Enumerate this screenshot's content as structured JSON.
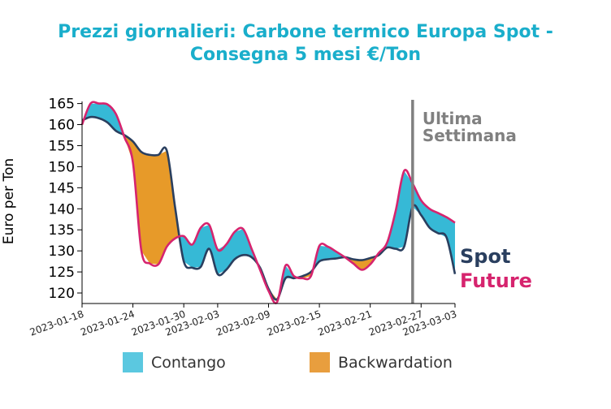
{
  "chart_data": {
    "type": "line",
    "title_line1": "Prezzi giornalieri: Carbone termico Europa Spot -",
    "title_line2": "Consegna 5 mesi €/Ton",
    "ylabel": "Euro per Ton",
    "xlabel": "",
    "ylim": [
      117.5,
      165.5
    ],
    "yticks": [
      120,
      125,
      130,
      135,
      140,
      145,
      150,
      155,
      160,
      165
    ],
    "xlim": [
      "2023-01-18",
      "2023-03-03"
    ],
    "xticks": [
      "2023-01-18",
      "2023-01-24",
      "2023-01-30",
      "2023-02-03",
      "2023-02-09",
      "2023-02-15",
      "2023-02-21",
      "2023-02-27",
      "2023-03-03"
    ],
    "dates": [
      "2023-01-18",
      "2023-01-19",
      "2023-01-20",
      "2023-01-21",
      "2023-01-22",
      "2023-01-23",
      "2023-01-24",
      "2023-01-25",
      "2023-01-26",
      "2023-01-27",
      "2023-01-28",
      "2023-01-29",
      "2023-01-30",
      "2023-01-31",
      "2023-02-01",
      "2023-02-02",
      "2023-02-03",
      "2023-02-04",
      "2023-02-05",
      "2023-02-06",
      "2023-02-07",
      "2023-02-08",
      "2023-02-09",
      "2023-02-10",
      "2023-02-11",
      "2023-02-12",
      "2023-02-13",
      "2023-02-14",
      "2023-02-15",
      "2023-02-16",
      "2023-02-17",
      "2023-02-18",
      "2023-02-19",
      "2023-02-20",
      "2023-02-21",
      "2023-02-22",
      "2023-02-23",
      "2023-02-24",
      "2023-02-25",
      "2023-02-26",
      "2023-02-27",
      "2023-02-28",
      "2023-03-01",
      "2023-03-02",
      "2023-03-03"
    ],
    "series": [
      {
        "name": "Spot",
        "color": "#2a3f5f",
        "values": [
          161,
          161.8,
          161.5,
          160.5,
          158.5,
          157.5,
          156,
          153.5,
          152.8,
          152.8,
          153.8,
          140,
          127.5,
          126,
          126.2,
          130.5,
          124.5,
          125.5,
          128,
          129,
          128.5,
          126,
          121,
          118.5,
          123.5,
          123.5,
          124,
          125,
          127.5,
          128,
          128.2,
          128.5,
          128,
          127.8,
          128.3,
          129,
          130.8,
          130.5,
          131,
          140.5,
          138.5,
          135.5,
          134.2,
          133.2,
          124.5
        ]
      },
      {
        "name": "Future",
        "color": "#d6246e",
        "values": [
          160,
          165,
          165,
          164.8,
          162.5,
          157,
          151,
          130,
          127,
          126.8,
          131,
          133,
          133.5,
          131.5,
          135.5,
          136.2,
          130.3,
          131.5,
          134.5,
          135.2,
          130.5,
          125.5,
          120.5,
          117.8,
          126.5,
          124,
          123.5,
          124,
          131.2,
          131,
          129.8,
          128.5,
          127,
          125.5,
          126.8,
          129.5,
          132,
          139.5,
          149,
          146,
          142,
          140,
          139,
          138,
          136.7
        ]
      }
    ],
    "vline": {
      "date": "2023-02-26",
      "color": "#808080"
    },
    "annotation": "Ultima\nSettimana",
    "end_labels": [
      "Spot",
      "Future"
    ],
    "legend": [
      {
        "label": "Contango",
        "color": "#5bc8e0"
      },
      {
        "label": "Backwardation",
        "color": "#e89e3e"
      }
    ],
    "fill_colors": {
      "contango": "#2bb5d4",
      "backwardation": "#e6951e"
    },
    "grid": false
  }
}
